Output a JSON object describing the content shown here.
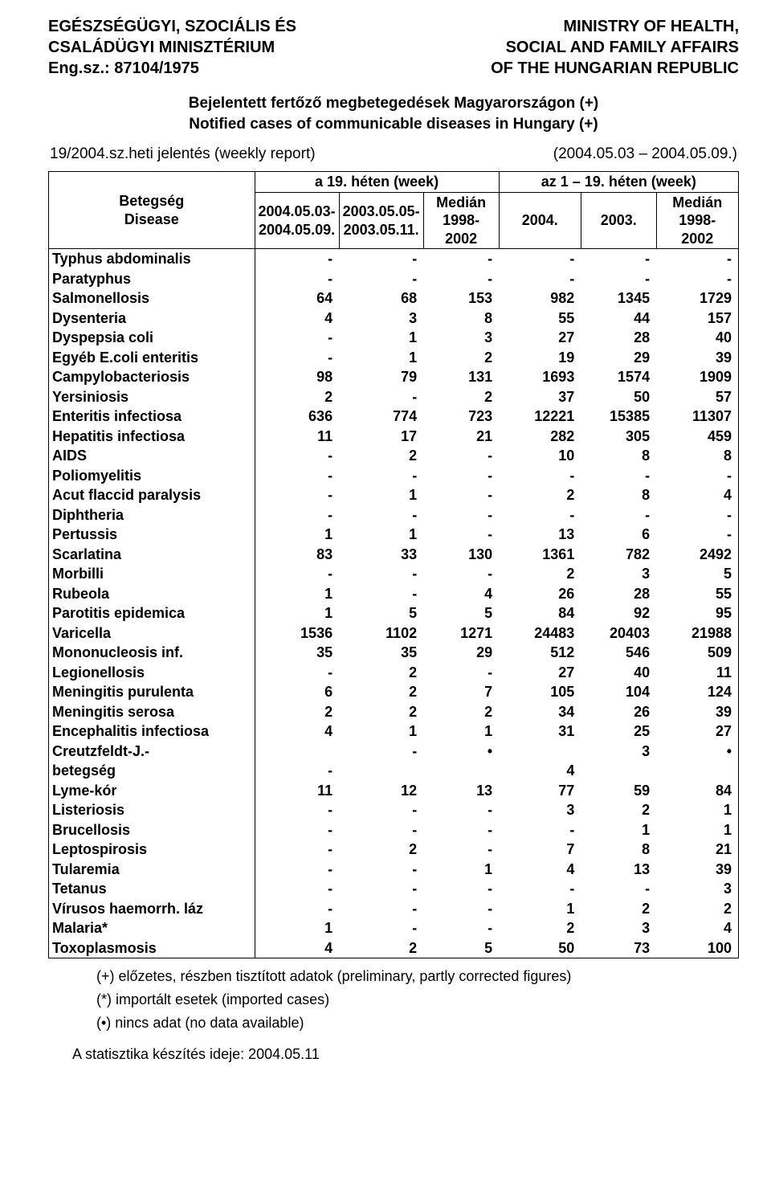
{
  "header": {
    "left_line1": "EGÉSZSÉGÜGYI, SZOCIÁLIS ÉS",
    "left_line2": "CSALÁDÜGYI MINISZTÉRIUM",
    "left_line3": "Eng.sz.: 87104/1975",
    "right_line1": "MINISTRY OF HEALTH,",
    "right_line2": "SOCIAL AND FAMILY AFFAIRS",
    "right_line3": "OF THE HUNGARIAN REPUBLIC"
  },
  "title": {
    "line1": "Bejelentett fertőző megbetegedések Magyarországon (+)",
    "line2": "Notified cases of communicable diseases in Hungary (+)"
  },
  "report": {
    "left": "19/2004.sz.heti jelentés (weekly report)",
    "right": "(2004.05.03 – 2004.05.09.)"
  },
  "table": {
    "head": {
      "disease": "Betegség\nDisease",
      "group1": "a 19. héten (week)",
      "group2": "az 1 – 19. héten (week)",
      "c1": "2004.05.03-\n2004.05.09.",
      "c2": "2003.05.05-\n2003.05.11.",
      "c3": "Medián\n1998-\n2002",
      "c4": "2004.",
      "c5": "2003.",
      "c6": "Medián\n1998-\n2002"
    },
    "rows": [
      {
        "name": "Typhus abdominalis",
        "v": [
          "-",
          "-",
          "-",
          "-",
          "-",
          "-"
        ]
      },
      {
        "name": "Paratyphus",
        "v": [
          "-",
          "-",
          "-",
          "-",
          "-",
          "-"
        ]
      },
      {
        "name": "Salmonellosis",
        "v": [
          "64",
          "68",
          "153",
          "982",
          "1345",
          "1729"
        ]
      },
      {
        "name": "Dysenteria",
        "v": [
          "4",
          "3",
          "8",
          "55",
          "44",
          "157"
        ]
      },
      {
        "name": "Dyspepsia coli",
        "v": [
          "-",
          "1",
          "3",
          "27",
          "28",
          "40"
        ]
      },
      {
        "name": "Egyéb E.coli enteritis",
        "v": [
          "-",
          "1",
          "2",
          "19",
          "29",
          "39"
        ]
      },
      {
        "name": "Campylobacteriosis",
        "v": [
          "98",
          "79",
          "131",
          "1693",
          "1574",
          "1909"
        ]
      },
      {
        "name": "Yersiniosis",
        "v": [
          "2",
          "-",
          "2",
          "37",
          "50",
          "57"
        ]
      },
      {
        "name": "Enteritis infectiosa",
        "v": [
          "636",
          "774",
          "723",
          "12221",
          "15385",
          "11307"
        ]
      },
      {
        "name": "Hepatitis infectiosa",
        "v": [
          "11",
          "17",
          "21",
          "282",
          "305",
          "459"
        ]
      },
      {
        "name": "AIDS",
        "v": [
          "-",
          "2",
          "-",
          "10",
          "8",
          "8"
        ]
      },
      {
        "name": "Poliomyelitis",
        "v": [
          "-",
          "-",
          "-",
          "-",
          "-",
          "-"
        ]
      },
      {
        "name": "Acut flaccid paralysis",
        "v": [
          "-",
          "1",
          "-",
          "2",
          "8",
          "4"
        ]
      },
      {
        "name": "Diphtheria",
        "v": [
          "-",
          "-",
          "-",
          "-",
          "-",
          "-"
        ]
      },
      {
        "name": "Pertussis",
        "v": [
          "1",
          "1",
          "-",
          "13",
          "6",
          "-"
        ]
      },
      {
        "name": "Scarlatina",
        "v": [
          "83",
          "33",
          "130",
          "1361",
          "782",
          "2492"
        ]
      },
      {
        "name": "Morbilli",
        "v": [
          "-",
          "-",
          "-",
          "2",
          "3",
          "5"
        ]
      },
      {
        "name": "Rubeola",
        "v": [
          "1",
          "-",
          "4",
          "26",
          "28",
          "55"
        ]
      },
      {
        "name": "Parotitis epidemica",
        "v": [
          "1",
          "5",
          "5",
          "84",
          "92",
          "95"
        ]
      },
      {
        "name": "Varicella",
        "v": [
          "1536",
          "1102",
          "1271",
          "24483",
          "20403",
          "21988"
        ]
      },
      {
        "name": "Mononucleosis inf.",
        "v": [
          "35",
          "35",
          "29",
          "512",
          "546",
          "509"
        ]
      },
      {
        "name": "Legionellosis",
        "v": [
          "-",
          "2",
          "-",
          "27",
          "40",
          "11"
        ]
      },
      {
        "name": "Meningitis purulenta",
        "v": [
          "6",
          "2",
          "7",
          "105",
          "104",
          "124"
        ]
      },
      {
        "name": "Meningitis serosa",
        "v": [
          "2",
          "2",
          "2",
          "34",
          "26",
          "39"
        ]
      },
      {
        "name": "Encephalitis infectiosa",
        "v": [
          "4",
          "1",
          "1",
          "31",
          "25",
          "27"
        ]
      },
      {
        "name": "Creutzfeldt-J.-",
        "v": [
          "",
          "-",
          "•",
          "",
          "3",
          "•"
        ]
      },
      {
        "name": "betegség",
        "v": [
          "-",
          "",
          "",
          "4",
          "",
          ""
        ]
      },
      {
        "name": "Lyme-kór",
        "v": [
          "11",
          "12",
          "13",
          "77",
          "59",
          "84"
        ]
      },
      {
        "name": "Listeriosis",
        "v": [
          "-",
          "-",
          "-",
          "3",
          "2",
          "1"
        ]
      },
      {
        "name": "Brucellosis",
        "v": [
          "-",
          "-",
          "-",
          "-",
          "1",
          "1"
        ]
      },
      {
        "name": "Leptospirosis",
        "v": [
          "-",
          "2",
          "-",
          "7",
          "8",
          "21"
        ]
      },
      {
        "name": "Tularemia",
        "v": [
          "-",
          "-",
          "1",
          "4",
          "13",
          "39"
        ]
      },
      {
        "name": "Tetanus",
        "v": [
          "-",
          "-",
          "-",
          "-",
          "-",
          "3"
        ]
      },
      {
        "name": "Vírusos haemorrh. láz",
        "v": [
          "-",
          "-",
          "-",
          "1",
          "2",
          "2"
        ]
      },
      {
        "name": "Malaria*",
        "v": [
          "1",
          "-",
          "-",
          "2",
          "3",
          "4"
        ]
      },
      {
        "name": "Toxoplasmosis",
        "v": [
          "4",
          "2",
          "5",
          "50",
          "73",
          "100"
        ]
      }
    ]
  },
  "footnotes": {
    "f1": "(+)  előzetes, részben tisztított adatok (preliminary, partly corrected figures)",
    "f2": "(*)  importált esetek (imported cases)",
    "f3": "(•)  nincs adat (no data available)"
  },
  "stat_time": "A statisztika készítés ideje: 2004.05.11",
  "style": {
    "font_family": "Arial",
    "base_fontsize_pt": 14,
    "text_color": "#000000",
    "background_color": "#ffffff",
    "border_color": "#000000",
    "column_widths_pct": [
      30,
      12,
      12,
      11,
      12,
      11,
      12
    ]
  }
}
